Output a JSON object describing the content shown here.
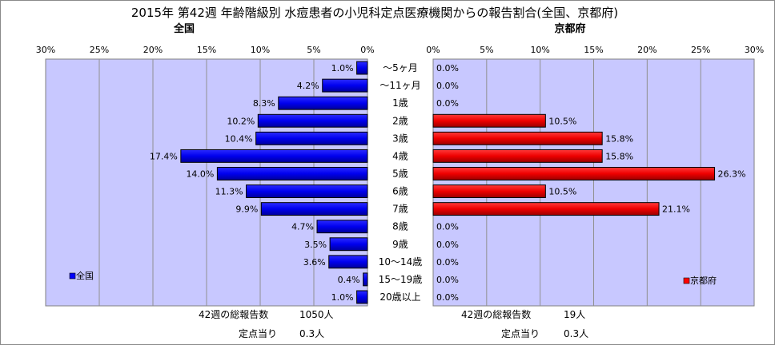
{
  "title": "2015年 第42週 年齢階級別 水痘患者の小児科定点医療機関からの報告割合(全国、京都府)",
  "chart_data": [
    {
      "type": "bar",
      "orientation": "horizontal",
      "subtitle": "全国",
      "x_direction": "reversed",
      "xlim": [
        0,
        30
      ],
      "xticks": [
        "30%",
        "25%",
        "20%",
        "15%",
        "10%",
        "5%",
        "0%"
      ],
      "grid": "vertical",
      "legend": {
        "label": "全国",
        "position": "left-bottom"
      },
      "bar_color": "#0000ff",
      "categories": [
        "～5ヶ月",
        "～11ヶ月",
        "1歳",
        "2歳",
        "3歳",
        "4歳",
        "5歳",
        "6歳",
        "7歳",
        "8歳",
        "9歳",
        "10～14歳",
        "15～19歳",
        "20歳以上"
      ],
      "values": [
        1.0,
        4.2,
        8.3,
        10.2,
        10.4,
        17.4,
        14.0,
        11.3,
        9.9,
        4.7,
        3.5,
        3.6,
        0.4,
        1.0
      ],
      "labels": [
        "1.0%",
        "4.2%",
        "8.3%",
        "10.2%",
        "10.4%",
        "17.4%",
        "14.0%",
        "11.3%",
        "9.9%",
        "4.7%",
        "3.5%",
        "3.6%",
        "0.4%",
        "1.0%"
      ],
      "footer": [
        {
          "label": "42週の総報告数",
          "value": "1050人"
        },
        {
          "label": "定点当り",
          "value": "0.3人"
        }
      ]
    },
    {
      "type": "bar",
      "orientation": "horizontal",
      "subtitle": "京都府",
      "xlim": [
        0,
        30
      ],
      "xticks": [
        "0%",
        "5%",
        "10%",
        "15%",
        "20%",
        "25%",
        "30%"
      ],
      "grid": "vertical",
      "legend": {
        "label": "京都府",
        "position": "right-bottom"
      },
      "bar_color": "#ff0000",
      "categories": [
        "～5ヶ月",
        "～11ヶ月",
        "1歳",
        "2歳",
        "3歳",
        "4歳",
        "5歳",
        "6歳",
        "7歳",
        "8歳",
        "9歳",
        "10～14歳",
        "15～19歳",
        "20歳以上"
      ],
      "values": [
        0.0,
        0.0,
        0.0,
        10.5,
        15.8,
        15.8,
        26.3,
        10.5,
        21.1,
        0.0,
        0.0,
        0.0,
        0.0,
        0.0
      ],
      "labels": [
        "0.0%",
        "0.0%",
        "0.0%",
        "10.5%",
        "15.8%",
        "15.8%",
        "26.3%",
        "10.5%",
        "21.1%",
        "0.0%",
        "0.0%",
        "0.0%",
        "0.0%",
        "0.0%"
      ],
      "footer": [
        {
          "label": "42週の総報告数",
          "value": "19人"
        },
        {
          "label": "定点当り",
          "value": "0.3人"
        }
      ]
    }
  ]
}
